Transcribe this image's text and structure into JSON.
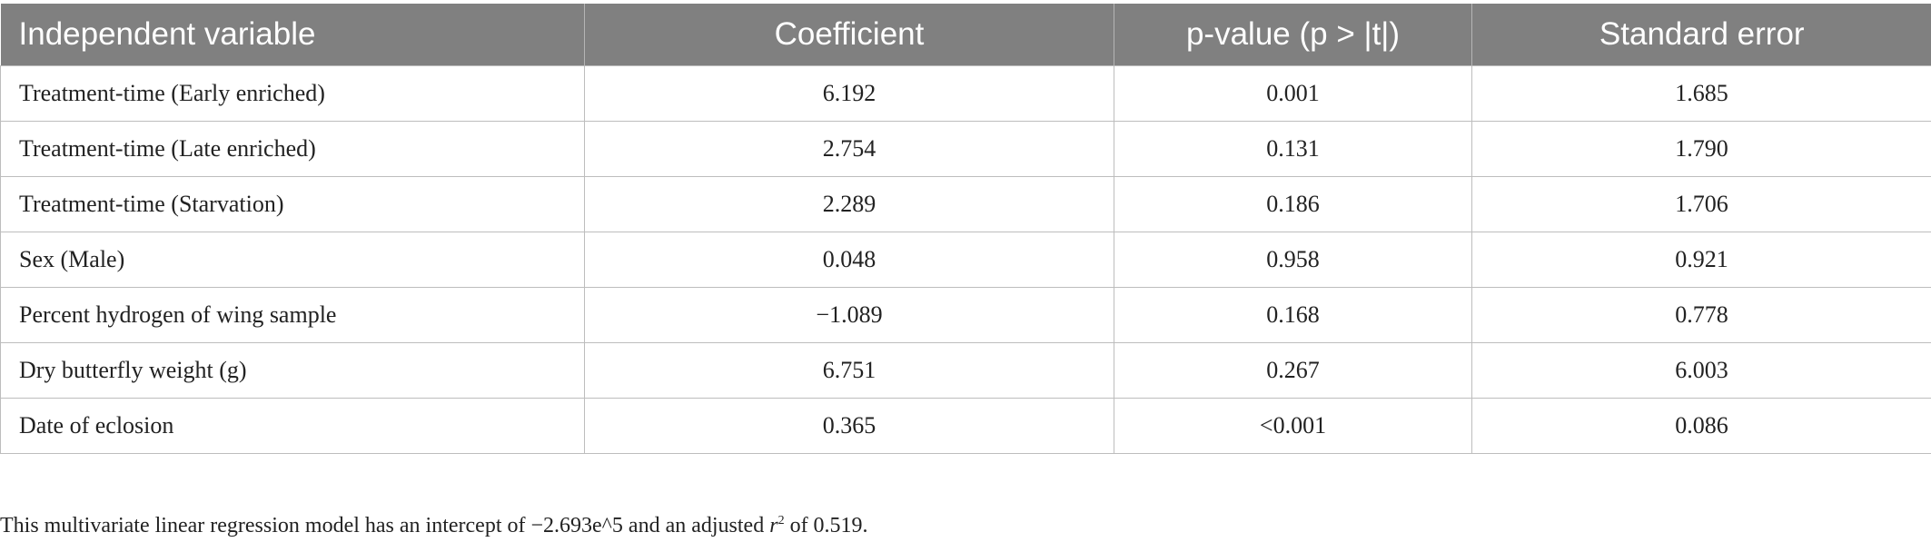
{
  "table": {
    "header": [
      "Independent variable",
      "Coefficient",
      "p-value (p > |t|)",
      "Standard error"
    ],
    "rows": [
      [
        "Treatment-time (Early enriched)",
        "6.192",
        "0.001",
        "1.685"
      ],
      [
        "Treatment-time (Late enriched)",
        "2.754",
        "0.131",
        "1.790"
      ],
      [
        "Treatment-time (Starvation)",
        "2.289",
        "0.186",
        "1.706"
      ],
      [
        "Sex (Male)",
        "0.048",
        "0.958",
        "0.921"
      ],
      [
        "Percent hydrogen of wing sample",
        "−1.089",
        "0.168",
        "0.778"
      ],
      [
        "Dry butterfly weight (g)",
        "6.751",
        "0.267",
        "6.003"
      ],
      [
        "Date of eclosion",
        "0.365",
        "<0.001",
        "0.086"
      ]
    ]
  },
  "footnote": [
    "This multivariate linear regression model has an intercept of −2.693e^5 and an adjusted ",
    "r",
    "2",
    " of 0.519."
  ]
}
